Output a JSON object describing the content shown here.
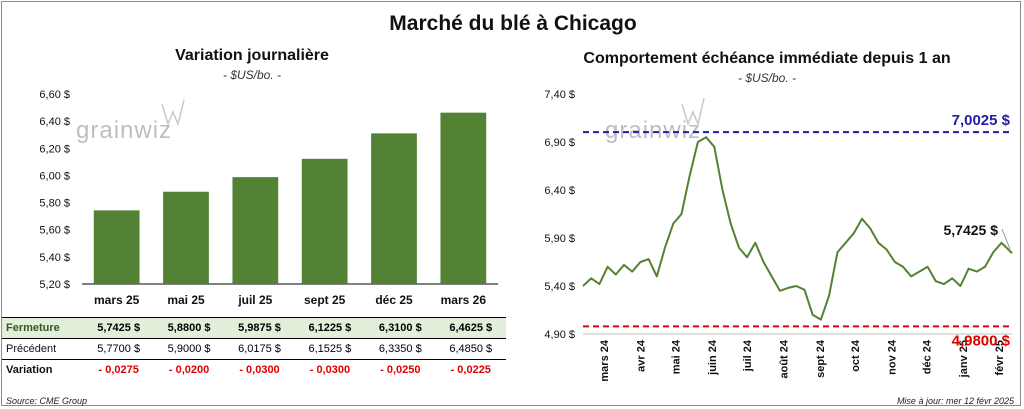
{
  "title": "Marché du blé à Chicago",
  "watermark": "grainwiz",
  "left_panel": {
    "title": "Variation journalière",
    "subtitle": "- $US/bo. -"
  },
  "right_panel": {
    "title": "Comportement échéance immédiate depuis 1 an",
    "subtitle": "- $US/bo. -"
  },
  "table": {
    "rows": [
      {
        "label": "Fermeture",
        "values": [
          "5,7425  $",
          "5,8800  $",
          "5,9875  $",
          "6,1225  $",
          "6,3100  $",
          "6,4625  $"
        ]
      },
      {
        "label": "Précédent",
        "values": [
          "5,7700  $",
          "5,9000  $",
          "6,0175  $",
          "6,1525  $",
          "6,3350  $",
          "6,4850  $"
        ]
      },
      {
        "label": "Variation",
        "values": [
          "- 0,0275",
          "- 0,0200",
          "- 0,0300",
          "- 0,0300",
          "- 0,0250",
          "- 0,0225"
        ]
      }
    ]
  },
  "footer": {
    "source": "Source: CME Group",
    "updated": "Mise à jour: mer 12 févr 2025"
  },
  "chart_data": [
    {
      "type": "bar",
      "categories": [
        "mars 25",
        "mai 25",
        "juil 25",
        "sept 25",
        "déc 25",
        "mars 26"
      ],
      "values": [
        5.7425,
        5.88,
        5.9875,
        6.1225,
        6.31,
        6.4625
      ],
      "ylim": [
        5.2,
        6.6
      ],
      "yticks": [
        5.2,
        5.4,
        5.6,
        5.8,
        6.0,
        6.2,
        6.4,
        6.6
      ],
      "ytick_labels": [
        "5,20 $",
        "5,40 $",
        "5,60 $",
        "5,80 $",
        "6,00 $",
        "6,20 $",
        "6,40 $",
        "6,60 $"
      ],
      "color": "#548235"
    },
    {
      "type": "line",
      "x_labels": [
        "mars 24",
        "avr 24",
        "mai 24",
        "juin 24",
        "juil 24",
        "août 24",
        "sept 24",
        "oct 24",
        "nov 24",
        "déc 24",
        "janv 25",
        "févr 25"
      ],
      "x": [
        "2024-02-12",
        "2024-02-19",
        "2024-02-26",
        "2024-03-04",
        "2024-03-11",
        "2024-03-18",
        "2024-03-25",
        "2024-04-01",
        "2024-04-08",
        "2024-04-15",
        "2024-04-22",
        "2024-04-29",
        "2024-05-06",
        "2024-05-13",
        "2024-05-20",
        "2024-05-27",
        "2024-06-03",
        "2024-06-10",
        "2024-06-17",
        "2024-06-24",
        "2024-07-01",
        "2024-07-08",
        "2024-07-15",
        "2024-07-22",
        "2024-07-29",
        "2024-08-05",
        "2024-08-12",
        "2024-08-19",
        "2024-08-26",
        "2024-09-02",
        "2024-09-09",
        "2024-09-16",
        "2024-09-23",
        "2024-09-30",
        "2024-10-07",
        "2024-10-14",
        "2024-10-21",
        "2024-10-28",
        "2024-11-04",
        "2024-11-11",
        "2024-11-18",
        "2024-11-25",
        "2024-12-02",
        "2024-12-09",
        "2024-12-16",
        "2024-12-23",
        "2024-12-30",
        "2025-01-06",
        "2025-01-13",
        "2025-01-20",
        "2025-01-27",
        "2025-02-03",
        "2025-02-12"
      ],
      "values": [
        5.4,
        5.48,
        5.42,
        5.6,
        5.52,
        5.62,
        5.55,
        5.65,
        5.68,
        5.5,
        5.8,
        6.05,
        6.15,
        6.55,
        6.9,
        6.95,
        6.85,
        6.4,
        6.05,
        5.8,
        5.7,
        5.85,
        5.65,
        5.5,
        5.35,
        5.38,
        5.4,
        5.36,
        5.1,
        5.05,
        5.3,
        5.75,
        5.85,
        5.95,
        6.1,
        6.0,
        5.85,
        5.78,
        5.65,
        5.6,
        5.5,
        5.55,
        5.6,
        5.45,
        5.42,
        5.48,
        5.4,
        5.58,
        5.55,
        5.6,
        5.75,
        5.85,
        5.7425
      ],
      "ylim": [
        4.9,
        7.4
      ],
      "yticks": [
        4.9,
        5.4,
        5.9,
        6.4,
        6.9,
        7.4
      ],
      "ytick_labels": [
        "4,90 $",
        "5,40 $",
        "5,90 $",
        "6,40 $",
        "6,90 $",
        "7,40 $"
      ],
      "high": {
        "value": 7.0025,
        "label": "7,0025 $",
        "color": "#1f1fa5"
      },
      "low": {
        "value": 4.98,
        "label": "4,9800 $",
        "color": "#e00000"
      },
      "last": {
        "value": 5.7425,
        "label": "5,7425 $"
      },
      "color": "#548235"
    }
  ]
}
